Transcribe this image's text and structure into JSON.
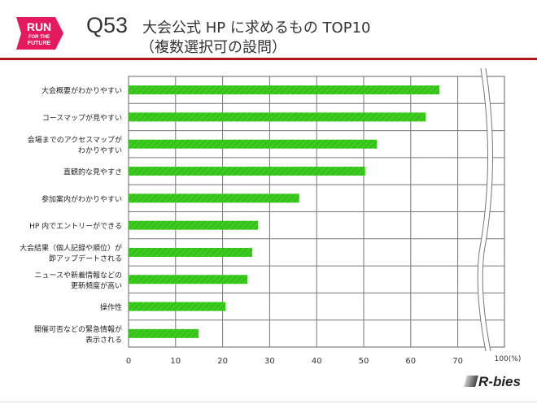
{
  "logo": {
    "lines": [
      "RUN",
      "FOR THE",
      "FUTURE"
    ],
    "color": "#e5195e"
  },
  "header": {
    "question": "Q53",
    "title_line1": "大会公式 HP に求めるもの TOP10",
    "title_line2": "（複数選択可の設問）"
  },
  "brand": "R-bies",
  "chart_data": {
    "type": "bar",
    "orientation": "horizontal",
    "categories": [
      [
        "大会概要がわかりやすい"
      ],
      [
        "コースマップが見やすい"
      ],
      [
        "会場までのアクセスマップが",
        "わかりやすい"
      ],
      [
        "直観的な見やすさ"
      ],
      [
        "参加案内がわかりやすい"
      ],
      [
        "HP 内でエントリーができる"
      ],
      [
        "大会結果（個人記録や順位）が",
        "即アップデートされる"
      ],
      [
        "ニュースや新着情報などの",
        "更新頻度が高い"
      ],
      [
        "操作性"
      ],
      [
        "開催可否などの緊急情報が",
        "表示される"
      ]
    ],
    "values": [
      66.1,
      63.2,
      52.8,
      50.3,
      36.3,
      27.5,
      26.3,
      25.3,
      20.6,
      14.9
    ],
    "xticks": [
      "0",
      "10",
      "20",
      "30",
      "40",
      "50",
      "60",
      "70",
      "100(%)"
    ],
    "tick_values": [
      0,
      10,
      20,
      30,
      40,
      50,
      60,
      70,
      100
    ],
    "axis_break": "between 70 and 100",
    "xlim": [
      0,
      100
    ],
    "grid": true,
    "bar_color": "#3ccc1e"
  }
}
